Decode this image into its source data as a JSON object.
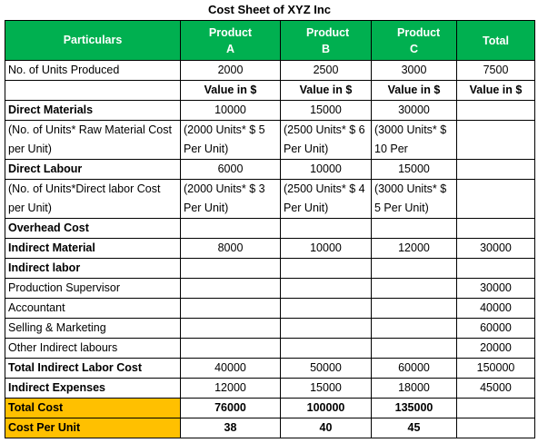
{
  "title": "Cost Sheet of XYZ Inc",
  "table": {
    "header": [
      "Particulars",
      "Product A",
      "Product B",
      "Product C",
      "Total"
    ],
    "rows": [
      [
        "No. of Units Produced",
        "2000",
        "2500",
        "3000",
        "7500"
      ],
      [
        null,
        "Value in $",
        "Value in $",
        "Value in $",
        "Value in $"
      ],
      [
        "Direct Materials",
        "10000",
        "15000",
        "30000",
        null
      ],
      [
        "(No. of Units* Raw Material Cost per Unit)",
        "(2000 Units* $ 5 Per Unit)",
        "(2500 Units* $ 6 Per Unit)",
        "(3000 Units* $ 10 Per",
        null
      ],
      [
        "Direct Labour",
        "6000",
        "10000",
        "15000",
        null
      ],
      [
        "(No. of Units*Direct labor Cost per Unit)",
        "(2000 Units* $ 3 Per Unit)",
        "(2500 Units* $ 4 Per Unit)",
        "(3000 Units* $ 5 Per Unit)",
        null
      ],
      [
        "Overhead Cost",
        null,
        null,
        null,
        null
      ],
      [
        "Indirect Material",
        "8000",
        "10000",
        "12000",
        "30000"
      ],
      [
        "Indirect labor",
        null,
        null,
        null,
        null
      ],
      [
        "Production Supervisor",
        null,
        null,
        null,
        "30000"
      ],
      [
        "Accountant",
        null,
        null,
        null,
        "40000"
      ],
      [
        "Selling & Marketing",
        null,
        null,
        null,
        "60000"
      ],
      [
        "Other Indirect labours",
        null,
        null,
        null,
        "20000"
      ],
      [
        "Total Indirect Labor Cost",
        "40000",
        "50000",
        "60000",
        "150000"
      ],
      [
        "Indirect Expenses",
        "12000",
        "15000",
        "18000",
        "45000"
      ],
      [
        "Total Cost",
        "76000",
        "100000",
        "135000",
        null
      ],
      [
        "Cost Per Unit",
        "38",
        "40",
        "45",
        null
      ]
    ]
  }
}
